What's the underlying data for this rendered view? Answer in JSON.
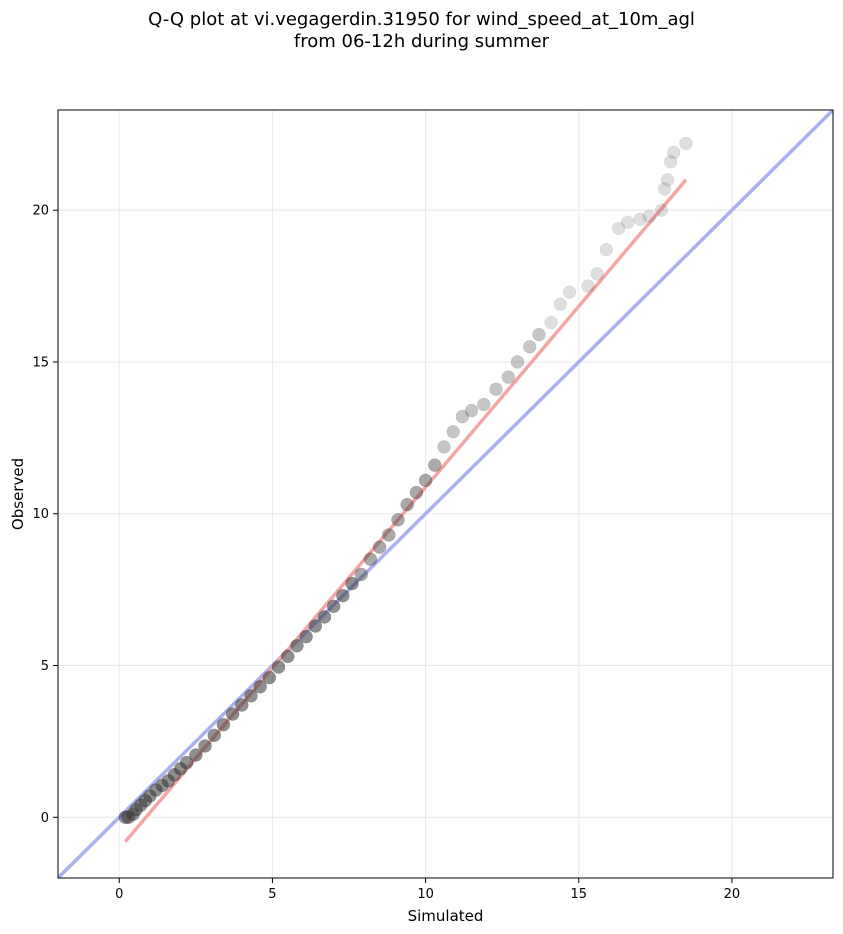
{
  "chart_data": {
    "type": "scatter",
    "title_line1": "Q-Q plot at vi.vegagerdin.31950 for wind_speed_at_10m_agl",
    "title_line2": "from 06-12h during summer",
    "xlabel": "Simulated",
    "ylabel": "Observed",
    "xlim": [
      -2,
      23.3
    ],
    "ylim": [
      -2,
      23.3
    ],
    "xticks": [
      0,
      5,
      10,
      15,
      20
    ],
    "yticks": [
      0,
      5,
      10,
      15,
      20
    ],
    "grid": true,
    "colors": {
      "points": "#333333",
      "identity_line": "#aab0f0",
      "fit_line": "#f4a6a6",
      "grid": "#e8e8e8"
    },
    "series": [
      {
        "kind": "quantile_points",
        "points": [
          [
            0.2,
            0.0
          ],
          [
            0.3,
            0.0
          ],
          [
            0.45,
            0.1
          ],
          [
            0.55,
            0.25
          ],
          [
            0.7,
            0.4
          ],
          [
            0.85,
            0.55
          ],
          [
            1.0,
            0.7
          ],
          [
            1.2,
            0.9
          ],
          [
            1.4,
            1.05
          ],
          [
            1.6,
            1.2
          ],
          [
            1.8,
            1.4
          ],
          [
            2.0,
            1.6
          ],
          [
            2.2,
            1.8
          ],
          [
            2.5,
            2.05
          ],
          [
            2.8,
            2.35
          ],
          [
            3.1,
            2.7
          ],
          [
            3.4,
            3.05
          ],
          [
            3.7,
            3.4
          ],
          [
            4.0,
            3.7
          ],
          [
            4.3,
            4.0
          ],
          [
            4.6,
            4.3
          ],
          [
            4.9,
            4.6
          ],
          [
            5.2,
            4.95
          ],
          [
            5.5,
            5.3
          ],
          [
            5.8,
            5.65
          ],
          [
            6.1,
            5.95
          ],
          [
            6.4,
            6.3
          ],
          [
            6.7,
            6.6
          ],
          [
            7.0,
            6.95
          ],
          [
            7.3,
            7.3
          ],
          [
            7.6,
            7.7
          ],
          [
            7.9,
            8.0
          ],
          [
            8.2,
            8.5
          ],
          [
            8.5,
            8.9
          ],
          [
            8.8,
            9.3
          ],
          [
            9.1,
            9.8
          ],
          [
            9.4,
            10.3
          ],
          [
            9.7,
            10.7
          ],
          [
            10.0,
            11.1
          ],
          [
            10.3,
            11.6
          ],
          [
            10.6,
            12.2
          ],
          [
            10.9,
            12.7
          ],
          [
            11.2,
            13.2
          ],
          [
            11.5,
            13.4
          ],
          [
            11.9,
            13.6
          ],
          [
            12.3,
            14.1
          ],
          [
            12.7,
            14.5
          ],
          [
            13.0,
            15.0
          ],
          [
            13.4,
            15.5
          ],
          [
            13.7,
            15.9
          ],
          [
            14.1,
            16.3
          ],
          [
            14.4,
            16.9
          ],
          [
            14.7,
            17.3
          ],
          [
            15.3,
            17.5
          ],
          [
            15.6,
            17.9
          ],
          [
            15.9,
            18.7
          ],
          [
            16.3,
            19.4
          ],
          [
            16.6,
            19.6
          ],
          [
            17.0,
            19.7
          ],
          [
            17.3,
            19.8
          ],
          [
            17.7,
            20.0
          ],
          [
            17.8,
            20.7
          ],
          [
            17.9,
            21.0
          ],
          [
            18.0,
            21.6
          ],
          [
            18.1,
            21.9
          ],
          [
            18.5,
            22.2
          ]
        ]
      },
      {
        "kind": "identity_line",
        "points": [
          [
            -2,
            -2
          ],
          [
            23.3,
            23.3
          ]
        ]
      },
      {
        "kind": "fit_line",
        "points": [
          [
            0.2,
            -0.8
          ],
          [
            18.5,
            21.0
          ]
        ]
      }
    ]
  }
}
